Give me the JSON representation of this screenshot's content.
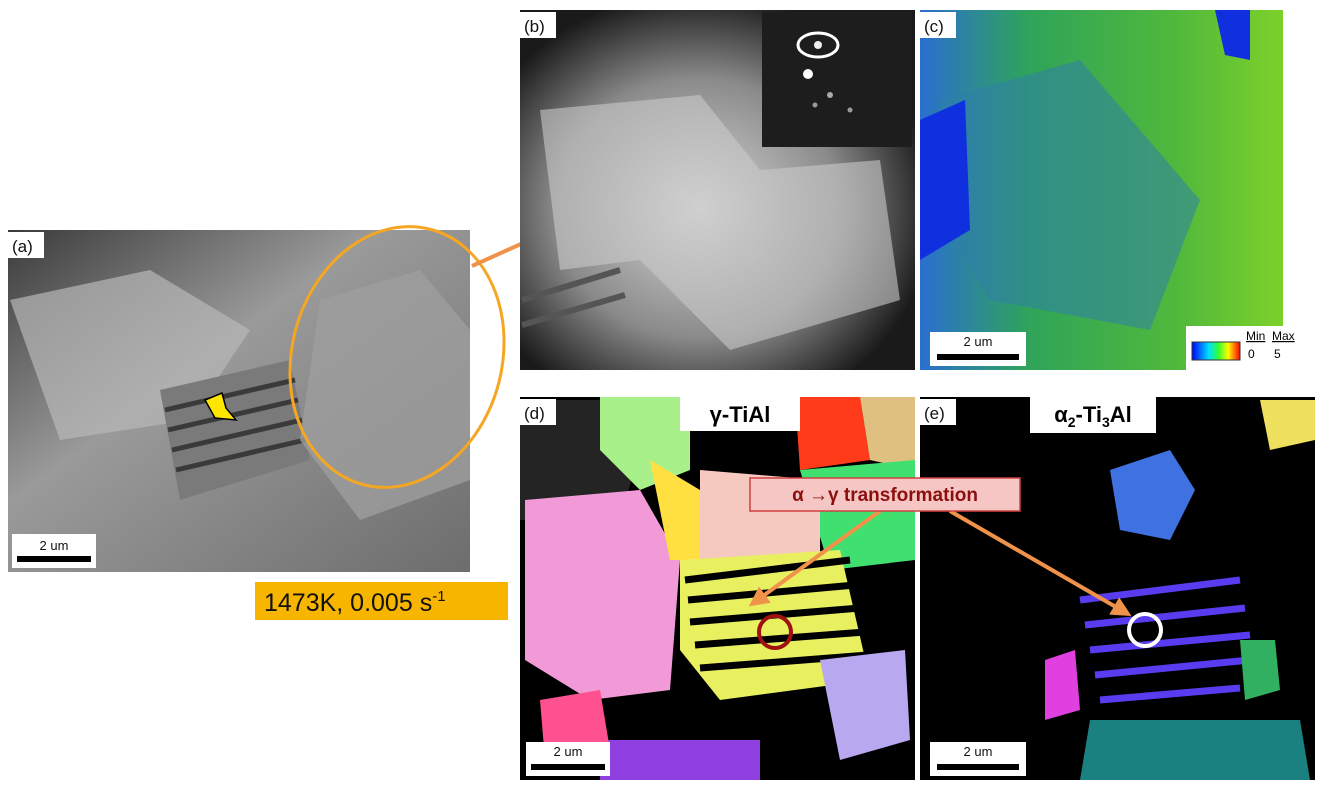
{
  "panels": [
    {
      "label": "(a)",
      "scale_bar": "2 um",
      "condition": {
        "text": "1473K, 0.005 s",
        "superscript": "-1"
      }
    },
    {
      "label": "(b)"
    },
    {
      "label": "(c)",
      "scale_bar": "2 um",
      "colorbar": {
        "min_label": "Min",
        "max_label": "Max",
        "min": 0,
        "max": 5
      }
    },
    {
      "label": "(d)",
      "phase": {
        "text": "γ-TiAl"
      },
      "scale_bar": "2 um"
    },
    {
      "label": "(e)",
      "phase": {
        "parts": [
          "α",
          "2",
          "-Ti",
          "3",
          "Al"
        ]
      },
      "scale_bar": "2 um"
    }
  ],
  "annotation": "α →γ transformation"
}
